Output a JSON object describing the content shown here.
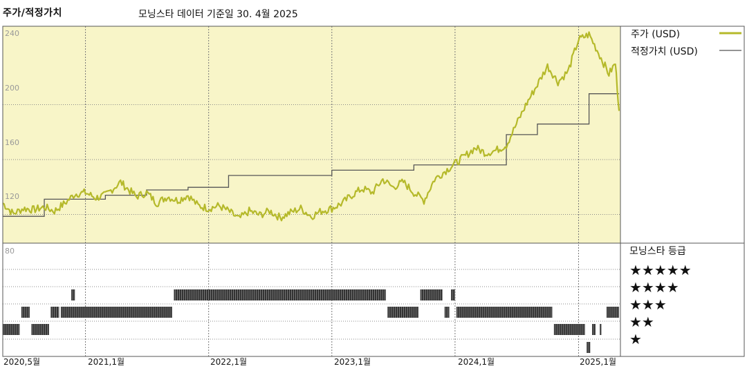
{
  "header": {
    "title": "주가/적정가치",
    "subtitle": "모닝스타 데이터 기준일 30. 4월 2025"
  },
  "colors": {
    "price": "#b5b92a",
    "fair_value": "#555555",
    "panel_bg": "#f8f5c8",
    "rating_bar": "#333333"
  },
  "chart_data": {
    "type": "line",
    "title": "주가/적정가치",
    "subtitle": "모닝스타 데이터 기준일 30. 4월 2025",
    "y_ticks": [
      "240",
      "200",
      "160",
      "120",
      "80"
    ],
    "ylim": [
      80,
      240
    ],
    "x_ticks": [
      "2020,5월",
      "2021,1월",
      "2022,1월",
      "2023,1월",
      "2024,1월",
      "2025,1월"
    ],
    "x_range": [
      "2020-05-01",
      "2025-05-05"
    ],
    "grid": true,
    "series": [
      {
        "name": "주가 (USD)",
        "style": "thick-olive",
        "points": [
          [
            "2020-05-01",
            110
          ],
          [
            "2020-06-01",
            102
          ],
          [
            "2020-07-01",
            106
          ],
          [
            "2020-08-01",
            105
          ],
          [
            "2020-09-01",
            107
          ],
          [
            "2020-10-01",
            104
          ],
          [
            "2020-11-01",
            110
          ],
          [
            "2020-12-01",
            117
          ],
          [
            "2021-01-01",
            118
          ],
          [
            "2021-02-01",
            114
          ],
          [
            "2021-03-01",
            116
          ],
          [
            "2021-04-15",
            126
          ],
          [
            "2021-05-01",
            122
          ],
          [
            "2021-06-01",
            115
          ],
          [
            "2021-07-01",
            118
          ],
          [
            "2021-08-01",
            110
          ],
          [
            "2021-09-01",
            115
          ],
          [
            "2021-10-01",
            112
          ],
          [
            "2021-11-01",
            116
          ],
          [
            "2021-12-01",
            108
          ],
          [
            "2022-01-01",
            106
          ],
          [
            "2022-02-01",
            108
          ],
          [
            "2022-03-01",
            104
          ],
          [
            "2022-04-01",
            98
          ],
          [
            "2022-05-01",
            104
          ],
          [
            "2022-06-01",
            101
          ],
          [
            "2022-07-01",
            104
          ],
          [
            "2022-08-01",
            99
          ],
          [
            "2022-09-01",
            103
          ],
          [
            "2022-10-01",
            106
          ],
          [
            "2022-11-01",
            100
          ],
          [
            "2022-12-01",
            104
          ],
          [
            "2023-01-01",
            106
          ],
          [
            "2023-02-01",
            110
          ],
          [
            "2023-03-01",
            116
          ],
          [
            "2023-04-01",
            121
          ],
          [
            "2023-05-01",
            118
          ],
          [
            "2023-06-01",
            128
          ],
          [
            "2023-07-01",
            122
          ],
          [
            "2023-08-01",
            126
          ],
          [
            "2023-09-01",
            118
          ],
          [
            "2023-10-01",
            112
          ],
          [
            "2023-11-01",
            128
          ],
          [
            "2023-12-01",
            134
          ],
          [
            "2024-01-01",
            140
          ],
          [
            "2024-02-01",
            146
          ],
          [
            "2024-03-01",
            152
          ],
          [
            "2024-04-01",
            148
          ],
          [
            "2024-05-01",
            150
          ],
          [
            "2024-06-01",
            154
          ],
          [
            "2024-07-01",
            170
          ],
          [
            "2024-08-01",
            186
          ],
          [
            "2024-09-01",
            200
          ],
          [
            "2024-10-01",
            214
          ],
          [
            "2024-11-01",
            202
          ],
          [
            "2024-12-01",
            210
          ],
          [
            "2025-01-01",
            234
          ],
          [
            "2025-02-01",
            238
          ],
          [
            "2025-03-01",
            224
          ],
          [
            "2025-04-01",
            208
          ],
          [
            "2025-04-20",
            216
          ],
          [
            "2025-05-01",
            180
          ]
        ]
      },
      {
        "name": "적정가치 (USD)",
        "style": "thin-gray",
        "steps": [
          [
            "2020-05-01",
            100
          ],
          [
            "2020-09-01",
            113
          ],
          [
            "2021-03-01",
            116
          ],
          [
            "2021-07-01",
            120
          ],
          [
            "2021-11-01",
            122
          ],
          [
            "2022-03-01",
            131
          ],
          [
            "2023-01-01",
            135
          ],
          [
            "2023-09-01",
            139
          ],
          [
            "2024-06-01",
            162
          ],
          [
            "2024-09-01",
            170
          ],
          [
            "2025-02-01",
            193
          ],
          [
            "2025-05-01",
            193
          ]
        ]
      }
    ]
  },
  "rating": {
    "title": "모닝스타 등급",
    "stars": [
      "★★★★★",
      "★★★★",
      "★★★",
      "★★",
      "★"
    ],
    "segments": [
      {
        "rating": 2,
        "start": "2020-05-01",
        "end": "2020-06-20"
      },
      {
        "rating": 3,
        "start": "2020-06-25",
        "end": "2020-07-20"
      },
      {
        "rating": 2,
        "start": "2020-07-25",
        "end": "2020-09-15"
      },
      {
        "rating": 3,
        "start": "2020-09-20",
        "end": "2020-10-15"
      },
      {
        "rating": 4,
        "start": "2020-11-20",
        "end": "2020-12-01"
      },
      {
        "rating": 3,
        "start": "2020-10-20",
        "end": "2021-09-15"
      },
      {
        "rating": 4,
        "start": "2021-09-20",
        "end": "2023-06-10"
      },
      {
        "rating": 3,
        "start": "2023-06-15",
        "end": "2023-09-15"
      },
      {
        "rating": 4,
        "start": "2023-09-20",
        "end": "2023-11-25"
      },
      {
        "rating": 3,
        "start": "2023-12-01",
        "end": "2023-12-15"
      },
      {
        "rating": 4,
        "start": "2023-12-20",
        "end": "2024-01-01"
      },
      {
        "rating": 3,
        "start": "2024-01-05",
        "end": "2024-10-15"
      },
      {
        "rating": 2,
        "start": "2024-10-20",
        "end": "2025-01-20"
      },
      {
        "rating": 1,
        "start": "2025-01-25",
        "end": "2025-02-05"
      },
      {
        "rating": 2,
        "start": "2025-02-10",
        "end": "2025-02-20"
      },
      {
        "rating": 2,
        "start": "2025-03-05",
        "end": "2025-03-10"
      },
      {
        "rating": 3,
        "start": "2025-03-25",
        "end": "2025-05-01"
      }
    ]
  }
}
